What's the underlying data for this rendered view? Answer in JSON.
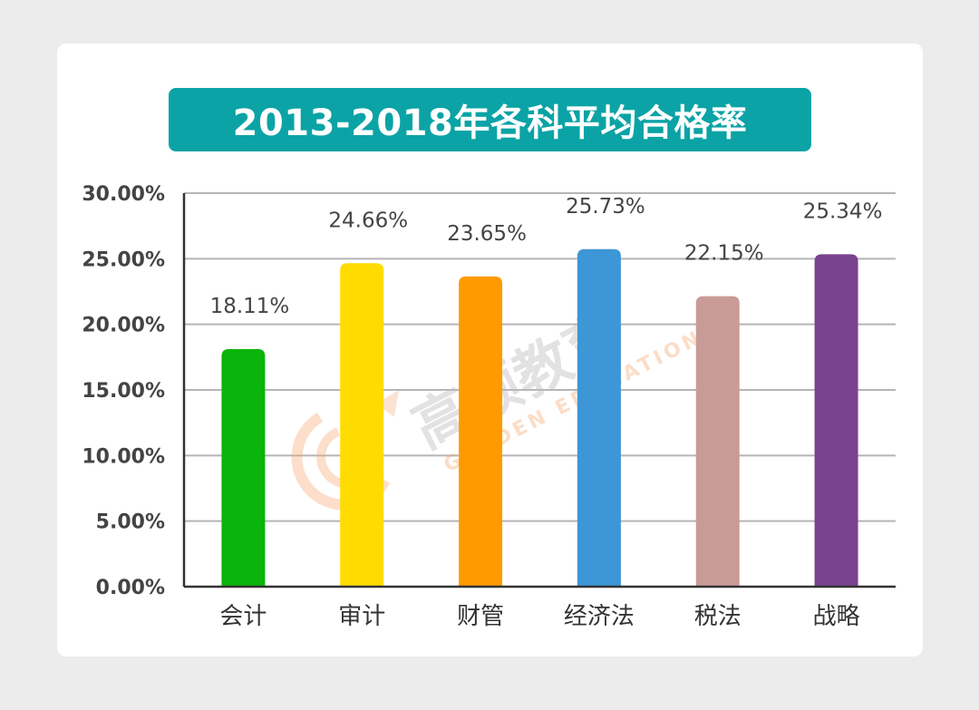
{
  "chart_data": {
    "type": "bar",
    "title": "2013-2018年各科平均合格率",
    "categories": [
      "会计",
      "审计",
      "财管",
      "经济法",
      "税法",
      "战略"
    ],
    "values": [
      18.11,
      24.66,
      23.65,
      25.73,
      22.15,
      25.34
    ],
    "data_labels": [
      "18.11%",
      "24.66%",
      "23.65%",
      "25.73%",
      "22.15%",
      "25.34%"
    ],
    "colors": [
      "#0ab40a",
      "#ffdc00",
      "#ff9a00",
      "#3d96d6",
      "#c99b97",
      "#7a438f"
    ],
    "ylim": [
      0,
      30
    ],
    "yticks": [
      0,
      5,
      10,
      15,
      20,
      25,
      30
    ],
    "ytick_labels": [
      "0.00%",
      "5.00%",
      "10.00%",
      "15.00%",
      "20.00%",
      "25.00%",
      "30.00%"
    ],
    "grid": true,
    "legend": "none",
    "xlabel": "",
    "ylabel": ""
  },
  "watermark": {
    "text": "高顿教育",
    "subtext": "GOLDEN EDUCATION"
  }
}
